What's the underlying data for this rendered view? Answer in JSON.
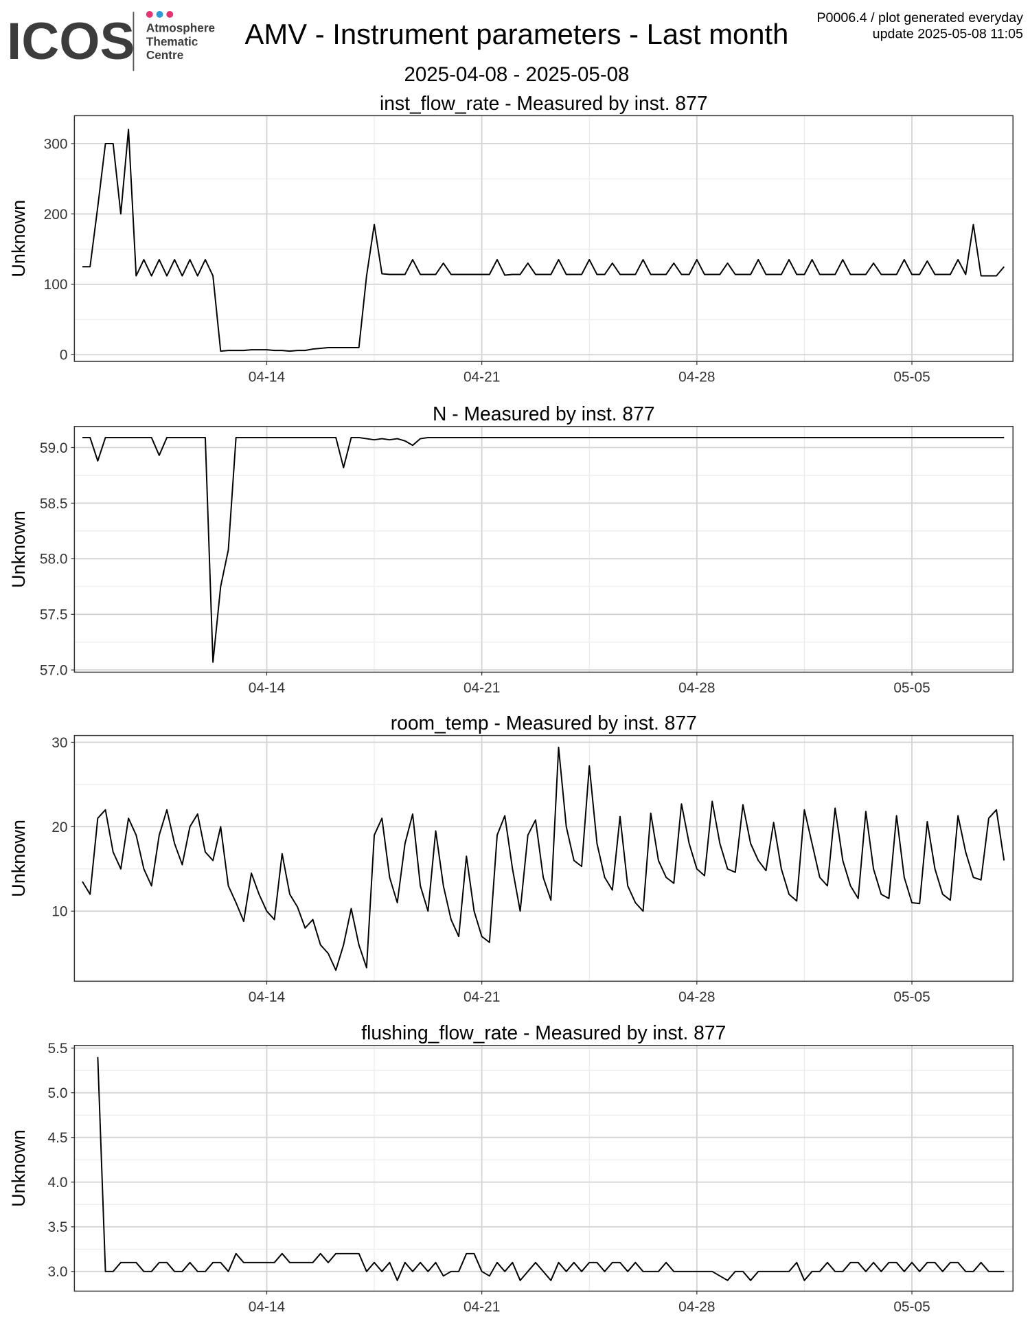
{
  "header": {
    "logo": "ICOS",
    "logo_lines": [
      "Atmosphere",
      "Thematic",
      "Centre"
    ],
    "title": "AMV - Instrument parameters - Last month",
    "note": "P0006.4 / plot generated everyday",
    "update": "update  2025-05-08 11:05",
    "subtitle": "2025-04-08 - 2025-05-08"
  },
  "chart_data": [
    {
      "type": "line",
      "title": "inst_flow_rate - Measured by inst. 877",
      "y_label": "Unknown",
      "color": "#000000",
      "grid": true,
      "xlim": [
        -0.26,
        30.29
      ],
      "xticks": [
        {
          "value": 6,
          "label": "04-14"
        },
        {
          "value": 13,
          "label": "04-21"
        },
        {
          "value": 20,
          "label": "04-28"
        },
        {
          "value": 27,
          "label": "05-05"
        }
      ],
      "ylim": [
        -9.6,
        339.6
      ],
      "yticks": [
        0,
        100,
        200,
        300
      ],
      "x": [
        0,
        0.25,
        0.5,
        0.75,
        1,
        1.25,
        1.5,
        1.75,
        2,
        2.25,
        2.5,
        2.75,
        3,
        3.25,
        3.5,
        3.75,
        4,
        4.25,
        4.5,
        4.75,
        5,
        5.25,
        5.5,
        5.75,
        6,
        6.25,
        6.5,
        6.75,
        7,
        7.25,
        7.5,
        7.75,
        8,
        8.25,
        8.5,
        8.75,
        9,
        9.25,
        9.5,
        9.75,
        10,
        10.25,
        10.5,
        10.75,
        11,
        11.25,
        11.5,
        11.75,
        12,
        12.25,
        12.5,
        12.75,
        13,
        13.25,
        13.5,
        13.75,
        14,
        14.25,
        14.5,
        14.75,
        15,
        15.25,
        15.5,
        15.75,
        16,
        16.25,
        16.5,
        16.75,
        17,
        17.25,
        17.5,
        17.75,
        18,
        18.25,
        18.5,
        18.75,
        19,
        19.25,
        19.5,
        19.75,
        20,
        20.25,
        20.5,
        20.75,
        21,
        21.25,
        21.5,
        21.75,
        22,
        22.25,
        22.5,
        22.75,
        23,
        23.25,
        23.5,
        23.75,
        24,
        24.25,
        24.5,
        24.75,
        25,
        25.25,
        25.5,
        25.75,
        26,
        26.25,
        26.5,
        26.75,
        27,
        27.25,
        27.5,
        27.75,
        28,
        28.25,
        28.5,
        28.75,
        29,
        29.25,
        29.5,
        29.75,
        30
      ],
      "values": [
        125,
        125,
        210,
        300,
        300,
        200,
        320,
        112,
        135,
        112,
        135,
        112,
        135,
        112,
        135,
        112,
        135,
        112,
        5,
        6,
        6,
        6,
        7,
        7,
        7,
        6,
        6,
        5,
        6,
        6,
        8,
        9,
        10,
        10,
        10,
        10,
        10,
        112,
        185,
        115,
        114,
        114,
        114,
        135,
        114,
        114,
        114,
        130,
        114,
        114,
        114,
        114,
        114,
        114,
        135,
        113,
        114,
        114,
        130,
        114,
        114,
        114,
        135,
        114,
        114,
        114,
        135,
        114,
        114,
        130,
        114,
        114,
        114,
        135,
        114,
        114,
        114,
        130,
        114,
        114,
        135,
        114,
        114,
        114,
        130,
        114,
        114,
        114,
        135,
        114,
        114,
        114,
        135,
        114,
        114,
        135,
        114,
        114,
        114,
        135,
        114,
        114,
        114,
        130,
        114,
        114,
        114,
        135,
        114,
        114,
        133,
        114,
        114,
        114,
        135,
        114,
        185,
        112,
        112,
        112,
        125
      ]
    },
    {
      "type": "line",
      "title": "N - Measured by inst. 877",
      "y_label": "Unknown",
      "color": "#000000",
      "grid": true,
      "xlim": [
        -0.26,
        30.29
      ],
      "xticks": [
        {
          "value": 6,
          "label": "04-14"
        },
        {
          "value": 13,
          "label": "04-21"
        },
        {
          "value": 20,
          "label": "04-28"
        },
        {
          "value": 27,
          "label": "05-05"
        }
      ],
      "ylim": [
        56.98,
        59.19
      ],
      "yticks": [
        {
          "value": 57,
          "label": "57.0"
        },
        57.5,
        {
          "value": 58,
          "label": "58.0"
        },
        58.5,
        {
          "value": 59,
          "label": "59.0"
        }
      ],
      "x": [
        0,
        0.25,
        0.5,
        0.75,
        1,
        1.25,
        1.5,
        1.75,
        2,
        2.25,
        2.5,
        2.75,
        3,
        3.25,
        3.5,
        3.75,
        4,
        4.25,
        4.5,
        4.75,
        5,
        5.25,
        5.5,
        5.75,
        6,
        6.25,
        6.5,
        6.75,
        7,
        7.25,
        7.5,
        7.75,
        8,
        8.25,
        8.5,
        8.75,
        9,
        9.25,
        9.5,
        9.75,
        10,
        10.25,
        10.5,
        10.75,
        11,
        11.25,
        11.5,
        11.75,
        12,
        12.25,
        12.5,
        12.75,
        13,
        13.25,
        13.5,
        13.75,
        14,
        14.25,
        14.5,
        14.75,
        15,
        15.25,
        15.5,
        15.75,
        16,
        16.25,
        16.5,
        16.75,
        17,
        17.25,
        17.5,
        17.75,
        18,
        18.25,
        18.5,
        18.75,
        19,
        19.25,
        19.5,
        19.75,
        20,
        20.25,
        20.5,
        20.75,
        21,
        21.25,
        21.5,
        21.75,
        22,
        22.25,
        22.5,
        22.75,
        23,
        23.25,
        23.5,
        23.75,
        24,
        24.25,
        24.5,
        24.75,
        25,
        25.25,
        25.5,
        25.75,
        26,
        26.25,
        26.5,
        26.75,
        27,
        27.25,
        27.5,
        27.75,
        28,
        28.25,
        28.5,
        28.75,
        29,
        29.25,
        29.5,
        29.75,
        30
      ],
      "values": [
        59.09,
        59.09,
        58.88,
        59.09,
        59.09,
        59.09,
        59.09,
        59.09,
        59.09,
        59.09,
        58.93,
        59.09,
        59.09,
        59.09,
        59.09,
        59.09,
        59.09,
        57.07,
        57.75,
        58.08,
        59.09,
        59.09,
        59.09,
        59.09,
        59.09,
        59.09,
        59.09,
        59.09,
        59.09,
        59.09,
        59.09,
        59.09,
        59.09,
        59.09,
        58.82,
        59.09,
        59.09,
        59.08,
        59.07,
        59.08,
        59.07,
        59.08,
        59.06,
        59.02,
        59.08,
        59.09,
        59.09,
        59.09,
        59.09,
        59.09,
        59.09,
        59.09,
        59.09,
        59.09,
        59.09,
        59.09,
        59.09,
        59.09,
        59.09,
        59.09,
        59.09,
        59.09,
        59.09,
        59.09,
        59.09,
        59.09,
        59.09,
        59.09,
        59.09,
        59.09,
        59.09,
        59.09,
        59.09,
        59.09,
        59.09,
        59.09,
        59.09,
        59.09,
        59.09,
        59.09,
        59.09,
        59.09,
        59.09,
        59.09,
        59.09,
        59.09,
        59.09,
        59.09,
        59.09,
        59.09,
        59.09,
        59.09,
        59.09,
        59.09,
        59.09,
        59.09,
        59.09,
        59.09,
        59.09,
        59.09,
        59.09,
        59.09,
        59.09,
        59.09,
        59.09,
        59.09,
        59.09,
        59.09,
        59.09,
        59.09,
        59.09,
        59.09,
        59.09,
        59.09,
        59.09,
        59.09,
        59.09,
        59.09,
        59.09,
        59.09,
        59.09
      ]
    },
    {
      "type": "line",
      "title": "room_temp - Measured by inst. 877",
      "y_label": "Unknown",
      "color": "#000000",
      "grid": true,
      "xlim": [
        -0.26,
        30.29
      ],
      "xticks": [
        {
          "value": 6,
          "label": "04-14"
        },
        {
          "value": 13,
          "label": "04-21"
        },
        {
          "value": 20,
          "label": "04-28"
        },
        {
          "value": 27,
          "label": "05-05"
        }
      ],
      "ylim": [
        1.7,
        30.8
      ],
      "yticks": [
        10,
        20,
        30
      ],
      "x": [
        0,
        0.25,
        0.5,
        0.75,
        1,
        1.25,
        1.5,
        1.75,
        2,
        2.25,
        2.5,
        2.75,
        3,
        3.25,
        3.5,
        3.75,
        4,
        4.25,
        4.5,
        4.75,
        5,
        5.25,
        5.5,
        5.75,
        6,
        6.25,
        6.5,
        6.75,
        7,
        7.25,
        7.5,
        7.75,
        8,
        8.25,
        8.5,
        8.75,
        9,
        9.25,
        9.5,
        9.75,
        10,
        10.25,
        10.5,
        10.75,
        11,
        11.25,
        11.5,
        11.75,
        12,
        12.25,
        12.5,
        12.75,
        13,
        13.25,
        13.5,
        13.75,
        14,
        14.25,
        14.5,
        14.75,
        15,
        15.25,
        15.5,
        15.75,
        16,
        16.25,
        16.5,
        16.75,
        17,
        17.25,
        17.5,
        17.75,
        18,
        18.25,
        18.5,
        18.75,
        19,
        19.25,
        19.5,
        19.75,
        20,
        20.25,
        20.5,
        20.75,
        21,
        21.25,
        21.5,
        21.75,
        22,
        22.25,
        22.5,
        22.75,
        23,
        23.25,
        23.5,
        23.75,
        24,
        24.25,
        24.5,
        24.75,
        25,
        25.25,
        25.5,
        25.75,
        26,
        26.25,
        26.5,
        26.75,
        27,
        27.25,
        27.5,
        27.75,
        28,
        28.25,
        28.5,
        28.75,
        29,
        29.25,
        29.5,
        29.75,
        30
      ],
      "values": [
        13.5,
        12,
        21,
        22,
        17,
        15,
        21,
        19,
        15,
        13,
        19,
        22,
        18,
        15.5,
        20,
        21.5,
        17,
        16,
        20,
        13,
        11,
        8.8,
        14.5,
        12,
        10,
        9,
        16.8,
        12,
        10.5,
        8,
        9,
        6,
        5,
        3,
        6,
        10.3,
        6,
        3.3,
        19,
        21,
        14,
        11,
        18,
        21.5,
        13,
        10,
        19.5,
        13,
        9,
        7,
        16.5,
        10,
        7,
        6.3,
        19,
        21.3,
        15,
        10,
        19,
        20.8,
        14,
        11.3,
        29.4,
        20,
        16,
        15.3,
        27.2,
        18,
        14,
        12.5,
        21.2,
        13,
        11,
        10,
        21.6,
        16,
        14,
        13.3,
        22.7,
        18,
        15,
        14.2,
        23,
        18,
        15,
        14.6,
        22.6,
        18,
        16,
        14.8,
        20.5,
        15,
        12,
        11.2,
        22,
        18,
        14,
        13,
        22.2,
        16,
        13,
        11.5,
        21.8,
        15,
        12,
        11.5,
        21.3,
        14,
        11,
        10.9,
        20.6,
        15,
        12,
        11.3,
        21.3,
        17,
        14,
        13.7,
        21,
        22,
        16
      ]
    },
    {
      "type": "line",
      "title": "flushing_flow_rate - Measured by inst. 877",
      "y_label": "Unknown",
      "color": "#000000",
      "grid": true,
      "xlim": [
        -0.26,
        30.29
      ],
      "xticks": [
        {
          "value": 6,
          "label": "04-14"
        },
        {
          "value": 13,
          "label": "04-21"
        },
        {
          "value": 20,
          "label": "04-28"
        },
        {
          "value": 27,
          "label": "05-05"
        }
      ],
      "ylim": [
        2.78,
        5.53
      ],
      "yticks": [
        {
          "value": 3,
          "label": "3.0"
        },
        3.5,
        {
          "value": 4,
          "label": "4.0"
        },
        4.5,
        {
          "value": 5,
          "label": "5.0"
        },
        5.5
      ],
      "x": [
        0,
        0.25,
        0.5,
        0.75,
        1,
        1.25,
        1.5,
        1.75,
        2,
        2.25,
        2.5,
        2.75,
        3,
        3.25,
        3.5,
        3.75,
        4,
        4.25,
        4.5,
        4.75,
        5,
        5.25,
        5.5,
        5.75,
        6,
        6.25,
        6.5,
        6.75,
        7,
        7.25,
        7.5,
        7.75,
        8,
        8.25,
        8.5,
        8.75,
        9,
        9.25,
        9.5,
        9.75,
        10,
        10.25,
        10.5,
        10.75,
        11,
        11.25,
        11.5,
        11.75,
        12,
        12.25,
        12.5,
        12.75,
        13,
        13.25,
        13.5,
        13.75,
        14,
        14.25,
        14.5,
        14.75,
        15,
        15.25,
        15.5,
        15.75,
        16,
        16.25,
        16.5,
        16.75,
        17,
        17.25,
        17.5,
        17.75,
        18,
        18.25,
        18.5,
        18.75,
        19,
        19.25,
        19.5,
        19.75,
        20,
        20.25,
        20.5,
        20.75,
        21,
        21.25,
        21.5,
        21.75,
        22,
        22.25,
        22.5,
        22.75,
        23,
        23.25,
        23.5,
        23.75,
        24,
        24.25,
        24.5,
        24.75,
        25,
        25.25,
        25.5,
        25.75,
        26,
        26.25,
        26.5,
        26.75,
        27,
        27.25,
        27.5,
        27.75,
        28,
        28.25,
        28.5,
        28.75,
        29,
        29.25,
        29.5,
        29.75,
        30
      ],
      "values": [
        null,
        null,
        5.4,
        3.0,
        3.0,
        3.1,
        3.1,
        3.1,
        3.0,
        3.0,
        3.1,
        3.1,
        3.0,
        3.0,
        3.1,
        3.0,
        3.0,
        3.1,
        3.1,
        3.0,
        3.2,
        3.1,
        3.1,
        3.1,
        3.1,
        3.1,
        3.2,
        3.1,
        3.1,
        3.1,
        3.1,
        3.2,
        3.1,
        3.2,
        3.2,
        3.2,
        3.2,
        3.0,
        3.1,
        3.0,
        3.1,
        2.9,
        3.1,
        3.0,
        3.1,
        3.0,
        3.1,
        2.95,
        3.0,
        3.0,
        3.2,
        3.2,
        3.0,
        2.95,
        3.1,
        3.0,
        3.1,
        2.9,
        3.0,
        3.1,
        3.0,
        2.9,
        3.1,
        3.0,
        3.1,
        3.0,
        3.1,
        3.1,
        3.0,
        3.1,
        3.1,
        3.0,
        3.1,
        3.0,
        3.0,
        3.0,
        3.1,
        3.0,
        3.0,
        3.0,
        3.0,
        3.0,
        3.0,
        2.95,
        2.9,
        3.0,
        3.0,
        2.9,
        3.0,
        3.0,
        3.0,
        3.0,
        3.0,
        3.1,
        2.9,
        3.0,
        3.0,
        3.1,
        3.0,
        3.0,
        3.1,
        3.1,
        3.0,
        3.1,
        3.0,
        3.1,
        3.1,
        3.0,
        3.1,
        3.0,
        3.1,
        3.1,
        3.0,
        3.1,
        3.1,
        3.0,
        3.0,
        3.1,
        3.0,
        3.0,
        3.0
      ]
    }
  ]
}
